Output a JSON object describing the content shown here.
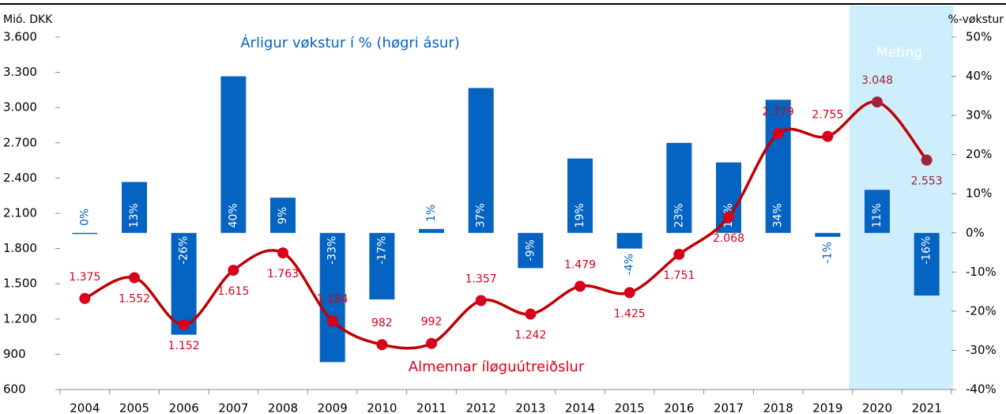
{
  "chart_data": {
    "type": "bar_line",
    "y_label": "Mió. DKK",
    "y2_label": "%-vøkstur",
    "annotations": [
      "Árligur vøkstur í % (høgri ásur)",
      "Almennar íløguútreiðslur",
      "Meting"
    ],
    "categories": [
      "2004",
      "2005",
      "2006",
      "2007",
      "2008",
      "2009",
      "2010",
      "2011",
      "2012",
      "2013",
      "2014",
      "2015",
      "2016",
      "2017",
      "2018",
      "2019",
      "2020",
      "2021"
    ],
    "series": [
      {
        "name": "Almennar íløguútreiðslur",
        "type": "line",
        "color": "#d9001b",
        "values": [
          1375,
          1552,
          1152,
          1615,
          1763,
          1184,
          982,
          992,
          1357,
          1242,
          1479,
          1425,
          1751,
          2068,
          2779,
          2755,
          3048,
          2553
        ],
        "value_labels": [
          "1.375",
          "1.552",
          "1.152",
          "1.615",
          "1.763",
          "1.184",
          "982",
          "992",
          "1.357",
          "1.242",
          "1.479",
          "1.425",
          "1.751",
          "2.068",
          "2.779",
          "2.755",
          "3.048",
          "2.553"
        ]
      },
      {
        "name": "Árligur vøkstur í % (høgri ásur)",
        "type": "bar",
        "axis": "y2",
        "color": "#0563c1",
        "values": [
          0,
          13,
          -26,
          40,
          9,
          -33,
          -17,
          1,
          37,
          -9,
          19,
          -4,
          23,
          18,
          34,
          -1,
          11,
          -16
        ],
        "value_labels": [
          "0%",
          "13%",
          "-26%",
          "40%",
          "9%",
          "-33%",
          "-17%",
          "1%",
          "37%",
          "-9%",
          "19%",
          "-4%",
          "23%",
          "18%",
          "34%",
          "-1%",
          "11%",
          "-16%"
        ]
      }
    ],
    "ylim": [
      600,
      3600
    ],
    "yticks": [
      600,
      900,
      {
        "value": 1200,
        "label": "1.200"
      },
      {
        "value": 1500,
        "label": "1.500"
      },
      {
        "value": 1800,
        "label": "1.800"
      },
      {
        "value": 2100,
        "label": "2.100"
      },
      {
        "value": 2400,
        "label": "2.400"
      },
      {
        "value": 2700,
        "label": "2.700"
      },
      {
        "value": 3000,
        "label": "3.000"
      },
      {
        "value": 3300,
        "label": "3.300"
      },
      {
        "value": 3600,
        "label": "3.600"
      }
    ],
    "y2lim": [
      -40,
      50
    ],
    "y2ticks": [
      {
        "value": -40,
        "label": "-40%"
      },
      {
        "value": -30,
        "label": "-30%"
      },
      {
        "value": -20,
        "label": "-20%"
      },
      {
        "value": -10,
        "label": "-10%"
      },
      {
        "value": 0,
        "label": "0%"
      },
      {
        "value": 10,
        "label": "10%"
      },
      {
        "value": 20,
        "label": "20%"
      },
      {
        "value": 30,
        "label": "30%"
      },
      {
        "value": 40,
        "label": "40%"
      },
      {
        "value": 50,
        "label": "50%"
      }
    ],
    "forecast_region": [
      "2020",
      "2021"
    ],
    "forecast_color": "#cdeefa"
  }
}
